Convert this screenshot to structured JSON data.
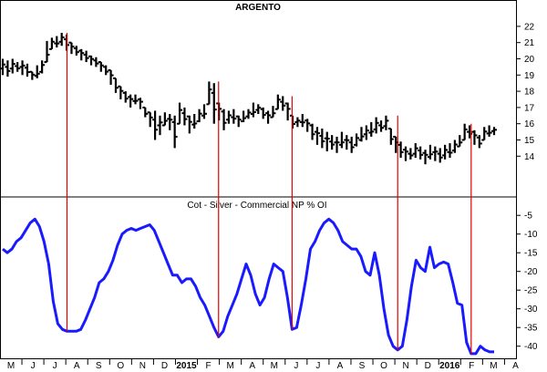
{
  "chart_data": [
    {
      "type": "ohlc",
      "title": "ARGENTO",
      "ylim": [
        12.5,
        22.5
      ],
      "yticks": [
        14,
        15,
        16,
        17,
        18,
        19,
        20,
        21,
        22
      ],
      "grid": false,
      "bar_color": "#000000",
      "bars": [
        [
          20.0,
          19.0
        ],
        [
          19.9,
          18.9
        ],
        [
          20.0,
          19.1
        ],
        [
          19.8,
          19.2
        ],
        [
          19.9,
          19.0
        ],
        [
          19.7,
          18.9
        ],
        [
          19.2,
          18.7
        ],
        [
          19.6,
          18.8
        ],
        [
          19.9,
          19.1
        ],
        [
          21.1,
          19.8
        ],
        [
          21.3,
          20.6
        ],
        [
          21.4,
          20.7
        ],
        [
          21.6,
          20.8
        ],
        [
          21.5,
          20.5
        ],
        [
          21.0,
          20.3
        ],
        [
          20.8,
          20.2
        ],
        [
          20.6,
          19.9
        ],
        [
          20.5,
          19.8
        ],
        [
          20.2,
          19.6
        ],
        [
          20.1,
          19.5
        ],
        [
          19.8,
          19.2
        ],
        [
          19.6,
          19.0
        ],
        [
          19.3,
          18.4
        ],
        [
          18.8,
          17.9
        ],
        [
          18.3,
          17.5
        ],
        [
          18.0,
          17.3
        ],
        [
          17.8,
          17.0
        ],
        [
          17.8,
          17.2
        ],
        [
          17.6,
          16.9
        ],
        [
          17.0,
          16.4
        ],
        [
          16.7,
          15.8
        ],
        [
          16.8,
          15.0
        ],
        [
          16.5,
          15.3
        ],
        [
          16.7,
          15.9
        ],
        [
          16.6,
          15.6
        ],
        [
          16.5,
          14.5
        ],
        [
          17.3,
          16.0
        ],
        [
          17.0,
          15.9
        ],
        [
          16.5,
          15.4
        ],
        [
          16.6,
          15.7
        ],
        [
          16.9,
          16.1
        ],
        [
          17.2,
          16.3
        ],
        [
          18.6,
          17.2
        ],
        [
          18.5,
          16.0
        ],
        [
          17.3,
          16.2
        ],
        [
          16.9,
          15.6
        ],
        [
          16.8,
          16.0
        ],
        [
          16.9,
          16.0
        ],
        [
          16.5,
          15.8
        ],
        [
          16.8,
          16.1
        ],
        [
          16.9,
          16.3
        ],
        [
          17.3,
          16.4
        ],
        [
          17.2,
          16.6
        ],
        [
          17.0,
          16.3
        ],
        [
          16.8,
          16.0
        ],
        [
          17.1,
          16.4
        ],
        [
          17.8,
          16.9
        ],
        [
          17.7,
          16.8
        ],
        [
          17.3,
          16.2
        ],
        [
          16.5,
          15.7
        ],
        [
          16.4,
          15.8
        ],
        [
          16.6,
          15.8
        ],
        [
          16.3,
          15.5
        ],
        [
          16.0,
          15.0
        ],
        [
          15.8,
          14.7
        ],
        [
          15.7,
          14.5
        ],
        [
          15.5,
          14.3
        ],
        [
          15.3,
          14.4
        ],
        [
          15.2,
          14.2
        ],
        [
          15.5,
          14.5
        ],
        [
          15.3,
          14.4
        ],
        [
          15.2,
          14.2
        ],
        [
          15.4,
          14.6
        ],
        [
          15.8,
          14.9
        ],
        [
          15.9,
          15.0
        ],
        [
          16.1,
          15.2
        ],
        [
          16.4,
          15.4
        ],
        [
          16.2,
          15.5
        ],
        [
          16.5,
          15.6
        ],
        [
          15.7,
          14.7
        ],
        [
          15.2,
          14.2
        ],
        [
          14.9,
          13.9
        ],
        [
          14.6,
          13.7
        ],
        [
          14.5,
          13.8
        ],
        [
          14.8,
          13.9
        ],
        [
          14.6,
          13.8
        ],
        [
          14.4,
          13.5
        ],
        [
          14.7,
          13.8
        ],
        [
          14.6,
          13.7
        ],
        [
          14.5,
          13.6
        ],
        [
          14.7,
          13.8
        ],
        [
          14.8,
          13.9
        ],
        [
          15.0,
          14.2
        ],
        [
          15.3,
          14.6
        ],
        [
          16.0,
          15.0
        ],
        [
          15.9,
          15.1
        ],
        [
          15.6,
          14.7
        ],
        [
          15.3,
          14.5
        ],
        [
          15.8,
          15.0
        ],
        [
          15.9,
          15.2
        ],
        [
          15.8,
          15.3
        ]
      ]
    },
    {
      "type": "line",
      "title": "Cot - Silver - Commercial NP % OI",
      "ylim": [
        -43,
        -3
      ],
      "yticks": [
        -5,
        -10,
        -15,
        -20,
        -25,
        -30,
        -35,
        -40
      ],
      "grid": false,
      "line_color": "#1a1aff",
      "values": [
        -14,
        -15,
        -14,
        -12,
        -11,
        -9,
        -7,
        -6,
        -8,
        -12,
        -18,
        -28,
        -34,
        -35.5,
        -36,
        -36,
        -36,
        -35.5,
        -33,
        -30,
        -27,
        -23,
        -22,
        -20,
        -17,
        -13,
        -10,
        -9,
        -8.5,
        -9,
        -8.5,
        -8,
        -7.5,
        -9,
        -12,
        -15,
        -18,
        -21,
        -21,
        -23,
        -22,
        -22,
        -24,
        -27,
        -29,
        -32,
        -35,
        -37.5,
        -36,
        -32,
        -29,
        -26,
        -22,
        -18,
        -21,
        -26,
        -29,
        -27,
        -22,
        -18,
        -19,
        -20,
        -27,
        -35.5,
        -35,
        -29,
        -22,
        -14,
        -12,
        -9,
        -7,
        -6,
        -7,
        -9,
        -12,
        -13,
        -14,
        -14,
        -16,
        -20,
        -21,
        -15,
        -21,
        -30,
        -37,
        -40,
        -41,
        -40,
        -33,
        -24,
        -17,
        -19,
        -20,
        -13.5,
        -19,
        -18,
        -17.5,
        -18,
        -23,
        -28.5,
        -29,
        -39,
        -42,
        -42,
        -40,
        -41,
        -41.5,
        -41.5
      ]
    }
  ],
  "x_axis": {
    "labels": [
      "M",
      "J",
      "J",
      "A",
      "S",
      "O",
      "N",
      "D",
      "2015",
      "F",
      "M",
      "A",
      "M",
      "J",
      "J",
      "A",
      "S",
      "O",
      "N",
      "D",
      "2016",
      "F",
      "M",
      "A"
    ]
  },
  "colors": {
    "marker_lines": "#e00000",
    "divider": "#000000"
  }
}
